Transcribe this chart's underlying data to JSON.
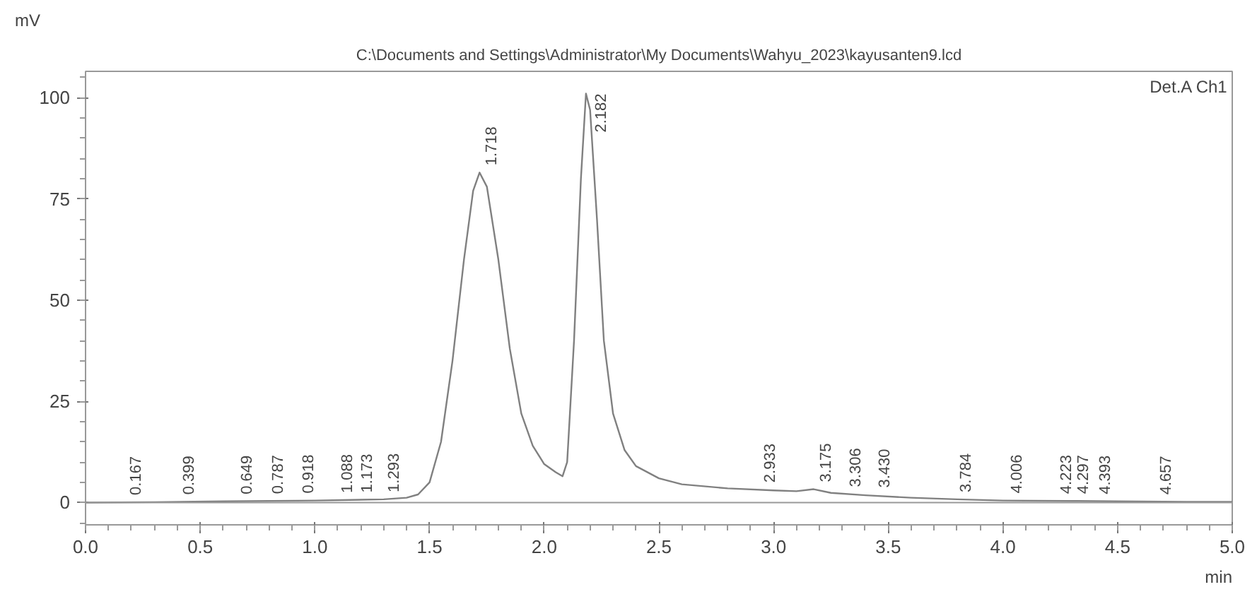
{
  "chart_data": {
    "type": "line",
    "title": "C:\\Documents and Settings\\Administrator\\My Documents\\Wahyu_2023\\kayusanten9.lcd",
    "xlabel": "min",
    "ylabel": "mV",
    "x": [
      0,
      0.3,
      0.6,
      1.0,
      1.3,
      1.4,
      1.45,
      1.5,
      1.55,
      1.6,
      1.65,
      1.69,
      1.718,
      1.75,
      1.8,
      1.85,
      1.9,
      1.95,
      2.0,
      2.05,
      2.08,
      2.1,
      2.13,
      2.16,
      2.182,
      2.2,
      2.23,
      2.26,
      2.3,
      2.35,
      2.4,
      2.5,
      2.6,
      2.8,
      3.0,
      3.1,
      3.175,
      3.25,
      3.4,
      3.6,
      3.8,
      4.0,
      4.3,
      4.5,
      4.8,
      5.0
    ],
    "series": [
      {
        "color": "#808080",
        "values": [
          0,
          0.1,
          0.3,
          0.5,
          0.8,
          1.2,
          2,
          5,
          15,
          35,
          60,
          77,
          81.5,
          78,
          60,
          38,
          22,
          14,
          9.5,
          7.5,
          6.5,
          10,
          40,
          80,
          101,
          97,
          70,
          40,
          22,
          13,
          9,
          6,
          4.5,
          3.5,
          3,
          2.8,
          3.3,
          2.4,
          1.8,
          1.2,
          0.8,
          0.5,
          0.4,
          0.3,
          0.2,
          0.2
        ]
      }
    ],
    "xlim": [
      0,
      5.0
    ],
    "ylim": [
      -5.5,
      106.5
    ],
    "xticks": [
      {
        "value": 0,
        "label": "0.0"
      },
      0.5,
      {
        "value": 1,
        "label": "1.0"
      },
      1.5,
      {
        "value": 2,
        "label": "2.0"
      },
      2.5,
      {
        "value": 3,
        "label": "3.0"
      },
      3.5,
      {
        "value": 4,
        "label": "4.0"
      },
      4.5,
      {
        "value": 5,
        "label": "5.0"
      }
    ],
    "yticks": [
      0,
      25,
      50,
      75,
      100
    ],
    "ref_lines": [
      {
        "axis": "y",
        "value": 0,
        "color": "#999999"
      }
    ],
    "annotations": [
      "Det.A Ch1",
      {
        "text": "0.167",
        "x": 0.167,
        "y": 0.1
      },
      {
        "text": "0.399",
        "x": 0.399,
        "y": 0.2
      },
      {
        "text": "0.649",
        "x": 0.649,
        "y": 0.3
      },
      {
        "text": "0.787",
        "x": 0.787,
        "y": 0.4
      },
      {
        "text": "0.918",
        "x": 0.918,
        "y": 0.5
      },
      {
        "text": "1.088",
        "x": 1.088,
        "y": 0.6
      },
      {
        "text": "1.173",
        "x": 1.173,
        "y": 0.7
      },
      {
        "text": "1.293",
        "x": 1.293,
        "y": 0.8
      },
      {
        "text": "1.718",
        "x": 1.718,
        "y": 81.5
      },
      {
        "text": "2.182",
        "x": 2.182,
        "y": 101
      },
      {
        "text": "2.933",
        "x": 2.933,
        "y": 3.2
      },
      {
        "text": "3.175",
        "x": 3.175,
        "y": 3.3
      },
      {
        "text": "3.306",
        "x": 3.306,
        "y": 2.1
      },
      {
        "text": "3.430",
        "x": 3.43,
        "y": 1.9
      },
      {
        "text": "3.784",
        "x": 3.784,
        "y": 0.8
      },
      {
        "text": "4.006",
        "x": 4.006,
        "y": 0.5
      },
      {
        "text": "4.223",
        "x": 4.223,
        "y": 0.4
      },
      {
        "text": "4.297",
        "x": 4.297,
        "y": 0.4
      },
      {
        "text": "4.393",
        "x": 4.393,
        "y": 0.3
      },
      {
        "text": "4.657",
        "x": 4.657,
        "y": 0.2
      }
    ]
  }
}
